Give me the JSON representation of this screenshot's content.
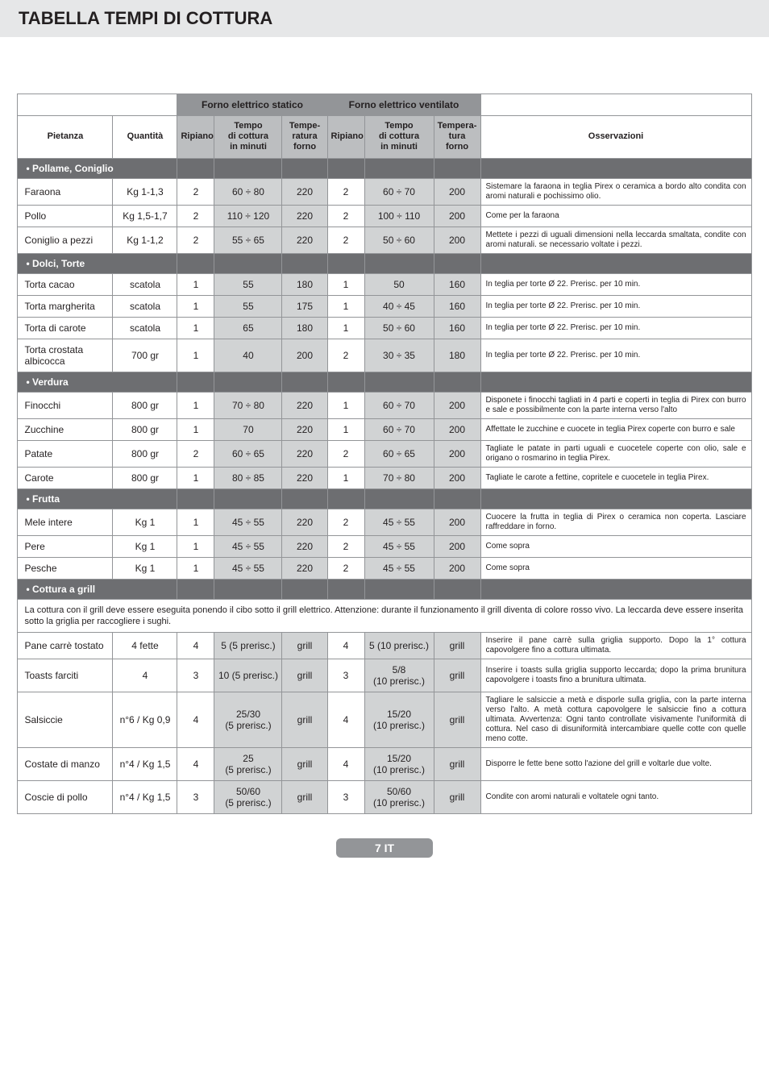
{
  "title": "TABELLA TEMPI DI COTTURA",
  "header": {
    "group_static": "Forno elettrico statico",
    "group_vent": "Forno elettrico ventilato",
    "pietanza": "Pietanza",
    "quantita": "Quantità",
    "ripiano": "Ripiano",
    "tempo": "Tempo\ndi cottura\nin minuti",
    "tempe": "Tempe-\nratura\nforno",
    "tempera": "Tempera-\ntura forno",
    "osserv": "Osservazioni"
  },
  "sections": [
    {
      "label": "• Pollame, Coniglio",
      "rows": [
        {
          "p": "Faraona",
          "q": "Kg 1-1,3",
          "r1": "2",
          "t1": "60 ÷ 80",
          "tp1": "220",
          "r2": "2",
          "t2": "60 ÷ 70",
          "tp2": "200",
          "o": "Sistemare la faraona in teglia Pirex o ceramica a bordo alto condita con aromi naturali e pochissimo olio."
        },
        {
          "p": "Pollo",
          "q": "Kg 1,5-1,7",
          "r1": "2",
          "t1": "110 ÷ 120",
          "tp1": "220",
          "r2": "2",
          "t2": "100 ÷ 110",
          "tp2": "200",
          "o": "Come per la faraona"
        },
        {
          "p": "Coniglio a pezzi",
          "q": "Kg 1-1,2",
          "r1": "2",
          "t1": "55 ÷ 65",
          "tp1": "220",
          "r2": "2",
          "t2": "50 ÷ 60",
          "tp2": "200",
          "o": "Mettete i pezzi di uguali dimensioni nella leccarda smaltata, condite con aromi naturali. se necessario voltate i pezzi."
        }
      ]
    },
    {
      "label": "• Dolci, Torte",
      "rows": [
        {
          "p": "Torta cacao",
          "q": "scatola",
          "r1": "1",
          "t1": "55",
          "tp1": "180",
          "r2": "1",
          "t2": "50",
          "tp2": "160",
          "o": "In teglia per torte Ø 22. Prerisc. per 10 min."
        },
        {
          "p": "Torta margherita",
          "q": "scatola",
          "r1": "1",
          "t1": "55",
          "tp1": "175",
          "r2": "1",
          "t2": "40 ÷ 45",
          "tp2": "160",
          "o": "In teglia per torte Ø 22. Prerisc. per 10 min."
        },
        {
          "p": "Torta di carote",
          "q": "scatola",
          "r1": "1",
          "t1": "65",
          "tp1": "180",
          "r2": "1",
          "t2": "50 ÷ 60",
          "tp2": "160",
          "o": "In teglia per torte Ø 22. Prerisc. per 10 min."
        },
        {
          "p": "Torta crostata albicocca",
          "q": "700 gr",
          "r1": "1",
          "t1": "40",
          "tp1": "200",
          "r2": "2",
          "t2": "30 ÷ 35",
          "tp2": "180",
          "o": "In teglia per torte Ø 22. Prerisc. per 10 min."
        }
      ]
    },
    {
      "label": "• Verdura",
      "rows": [
        {
          "p": "Finocchi",
          "q": "800 gr",
          "r1": "1",
          "t1": "70 ÷ 80",
          "tp1": "220",
          "r2": "1",
          "t2": "60 ÷ 70",
          "tp2": "200",
          "o": "Disponete i finocchi tagliati in 4 parti e coperti in teglia di Pirex con burro e sale e possibilmente con la parte interna verso l'alto"
        },
        {
          "p": "Zucchine",
          "q": "800 gr",
          "r1": "1",
          "t1": "70",
          "tp1": "220",
          "r2": "1",
          "t2": "60 ÷ 70",
          "tp2": "200",
          "o": "Affettate le zucchine e cuocete in teglia Pirex coperte con burro e sale"
        },
        {
          "p": "Patate",
          "q": "800 gr",
          "r1": "2",
          "t1": "60 ÷ 65",
          "tp1": "220",
          "r2": "2",
          "t2": "60 ÷ 65",
          "tp2": "200",
          "o": "Tagliate le patate in parti uguali e cuocetele coperte con olio, sale e origano o rosmarino in teglia Pirex."
        },
        {
          "p": "Carote",
          "q": "800 gr",
          "r1": "1",
          "t1": "80 ÷ 85",
          "tp1": "220",
          "r2": "1",
          "t2": "70 ÷ 80",
          "tp2": "200",
          "o": "Tagliate le carote a fettine, copritele e cuocetele in teglia Pirex."
        }
      ]
    },
    {
      "label": "• Frutta",
      "rows": [
        {
          "p": "Mele intere",
          "q": "Kg 1",
          "r1": "1",
          "t1": "45 ÷ 55",
          "tp1": "220",
          "r2": "2",
          "t2": "45 ÷ 55",
          "tp2": "200",
          "o": "Cuocere la frutta in teglia di Pirex o ceramica non coperta. Lasciare raffreddare in forno."
        },
        {
          "p": "Pere",
          "q": "Kg 1",
          "r1": "1",
          "t1": "45 ÷ 55",
          "tp1": "220",
          "r2": "2",
          "t2": "45 ÷ 55",
          "tp2": "200",
          "o": "Come sopra"
        },
        {
          "p": "Pesche",
          "q": "Kg 1",
          "r1": "1",
          "t1": "45 ÷ 55",
          "tp1": "220",
          "r2": "2",
          "t2": "45 ÷ 55",
          "tp2": "200",
          "o": "Come sopra"
        }
      ]
    }
  ],
  "grill_section_label": "• Cottura a grill",
  "grill_note": "La cottura con il grill deve essere eseguita ponendo il cibo sotto il grill elettrico. Attenzione: durante il funzionamento il grill diventa di colore rosso vivo. La leccarda deve essere inserita sotto la griglia per raccogliere i sughi.",
  "grill_rows": [
    {
      "p": "Pane carrè tostato",
      "q": "4 fette",
      "r1": "4",
      "t1": "5 (5 prerisc.)",
      "tp1": "grill",
      "r2": "4",
      "t2": "5 (10 prerisc.)",
      "tp2": "grill",
      "o": "Inserire il pane carrè sulla griglia supporto. Dopo la 1° cottura capovolgere fino a cottura ultimata."
    },
    {
      "p": "Toasts farciti",
      "q": "4",
      "r1": "3",
      "t1": "10 (5 prerisc.)",
      "tp1": "grill",
      "r2": "3",
      "t2": "5/8\n(10 prerisc.)",
      "tp2": "grill",
      "o": "Inserire i toasts sulla griglia supporto leccarda; dopo la prima brunitura capovolgere i toasts fino a brunitura ultimata."
    },
    {
      "p": "Salsiccie",
      "q": "n°6 / Kg 0,9",
      "r1": "4",
      "t1": "25/30\n(5 prerisc.)",
      "tp1": "grill",
      "r2": "4",
      "t2": "15/20\n(10 prerisc.)",
      "tp2": "grill",
      "o": "Tagliare le salsiccie a metà e disporle sulla griglia, con la parte interna verso l'alto. A metà cottura capovolgere le salsiccie fino a cottura ultimata. Avvertenza: Ogni tanto controllate visivamente l'uniformità di cottura. Nel caso di disuniformità intercambiare quelle cotte con quelle meno cotte."
    },
    {
      "p": "Costate di manzo",
      "q": "n°4 / Kg 1,5",
      "r1": "4",
      "t1": "25\n(5 prerisc.)",
      "tp1": "grill",
      "r2": "4",
      "t2": "15/20\n(10 prerisc.)",
      "tp2": "grill",
      "o": "Disporre le fette bene sotto l'azione del grill e voltarle due volte."
    },
    {
      "p": "Coscie di pollo",
      "q": "n°4 / Kg 1,5",
      "r1": "3",
      "t1": "50/60\n(5 prerisc.)",
      "tp1": "grill",
      "r2": "3",
      "t2": "50/60\n(10 prerisc.)",
      "tp2": "grill",
      "o": "Condite con aromi naturali e voltatele ogni tanto."
    }
  ],
  "footer": "7 IT"
}
